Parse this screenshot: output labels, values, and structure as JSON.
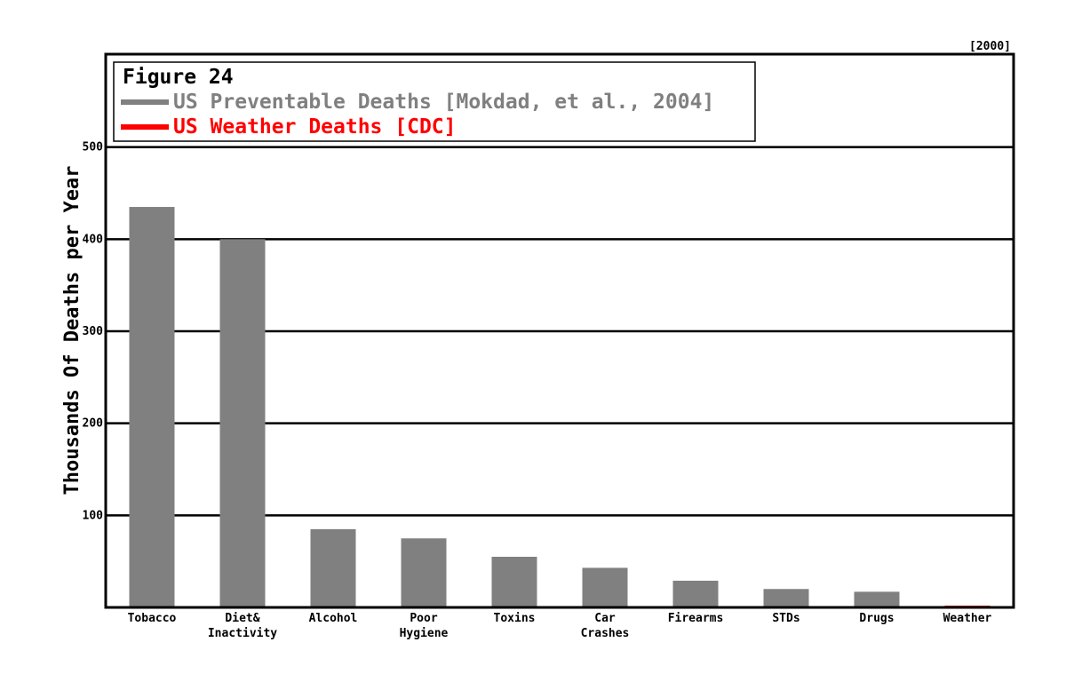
{
  "chart_data": {
    "type": "bar",
    "corner_label": "[2000]",
    "legend": {
      "title": "Figure 24",
      "placement": "top-left",
      "entries": [
        {
          "label": "US Preventable Deaths [Mokdad, et al., 2004]",
          "color": "#808080"
        },
        {
          "label": "US Weather Deaths [CDC]",
          "color": "#ff0000"
        }
      ]
    },
    "ylabel": "Thousands Of Deaths per Year",
    "ylim": [
      0,
      600
    ],
    "yticks": [
      100,
      200,
      300,
      400,
      500
    ],
    "grid": true,
    "categories": [
      [
        "Tobacco"
      ],
      [
        "Diet&",
        "Inactivity"
      ],
      [
        "Alcohol"
      ],
      [
        "Poor",
        "Hygiene"
      ],
      [
        "Toxins"
      ],
      [
        "Car",
        "Crashes"
      ],
      [
        "Firearms"
      ],
      [
        "STDs"
      ],
      [
        "Drugs"
      ],
      [
        "Weather"
      ]
    ],
    "series": [
      {
        "name": "US Preventable Deaths [Mokdad, et al., 2004]",
        "color": "#808080",
        "values": [
          435,
          400,
          85,
          75,
          55,
          43,
          29,
          20,
          17,
          null
        ]
      },
      {
        "name": "US Weather Deaths [CDC]",
        "color": "#ff0000",
        "values": [
          null,
          null,
          null,
          null,
          null,
          null,
          null,
          null,
          null,
          0.6
        ]
      }
    ]
  }
}
